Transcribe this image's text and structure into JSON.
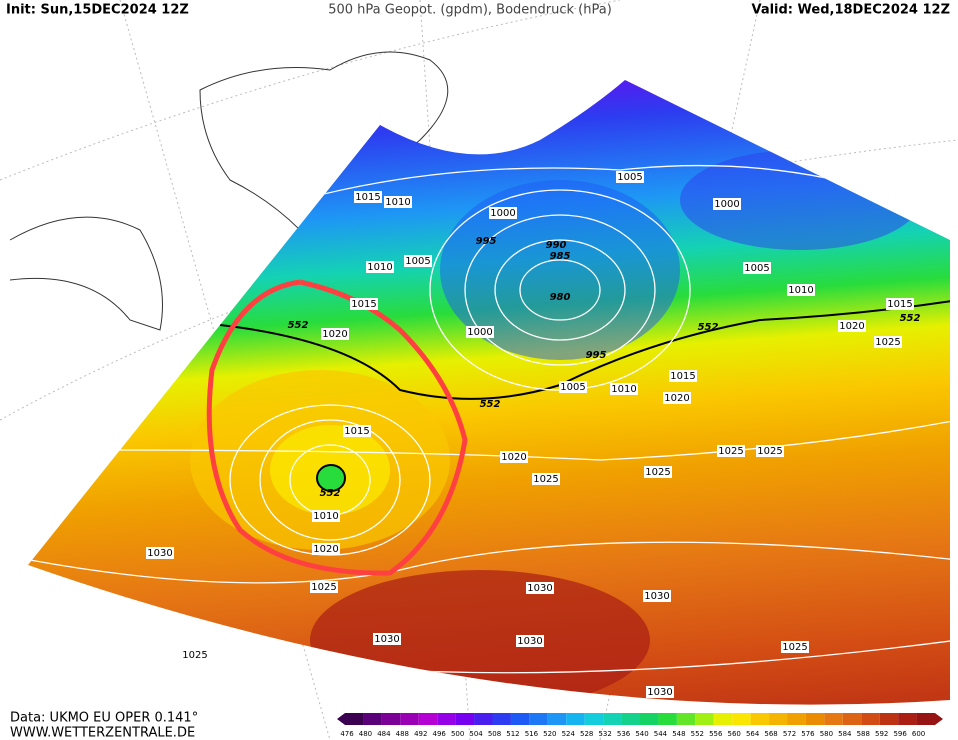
{
  "header": {
    "init": "Init: Sun,15DEC2024 12Z",
    "title": "500 hPa Geopot. (gpdm), Bodendruck (hPa)",
    "valid": "Valid: Wed,18DEC2024 12Z"
  },
  "footer": {
    "source": "Data: UKMO EU OPER 0.141°",
    "site": "WWW.WETTERZENTRALE.DE"
  },
  "isobar_labels": [
    1015,
    1010,
    1000,
    1005,
    1000,
    995,
    990,
    985,
    980,
    1010,
    1005,
    1005,
    1010,
    1015,
    552,
    1020,
    1025,
    1015,
    552,
    1020,
    1000,
    552,
    995,
    1005,
    1010,
    1015,
    1020,
    552,
    1015,
    1020,
    1025,
    1025,
    1025,
    1025,
    552,
    1010,
    1020,
    1030,
    1025,
    1030,
    1030,
    1030,
    1030,
    1025,
    1025,
    1030
  ],
  "color_scale": {
    "labels": [
      476,
      480,
      484,
      488,
      492,
      496,
      500,
      504,
      508,
      512,
      516,
      520,
      524,
      528,
      532,
      536,
      540,
      544,
      548,
      552,
      556,
      560,
      564,
      568,
      572,
      576,
      580,
      584,
      588,
      592,
      596,
      600
    ],
    "colors": [
      "#3c0050",
      "#5a0078",
      "#7a0096",
      "#9a00b4",
      "#b400d2",
      "#9600e6",
      "#7800f0",
      "#4b1ef0",
      "#2d3cf0",
      "#1e5af5",
      "#1e78f5",
      "#1e96f5",
      "#14b4f0",
      "#14cddc",
      "#14d2b4",
      "#14d28c",
      "#14d264",
      "#28dc3c",
      "#64e628",
      "#a0f014",
      "#e6f000",
      "#fae600",
      "#fac800",
      "#f5b400",
      "#f0a000",
      "#eb8c00",
      "#e67814",
      "#dc6414",
      "#d24b14",
      "#be3214",
      "#aa1e14",
      "#961414"
    ]
  }
}
